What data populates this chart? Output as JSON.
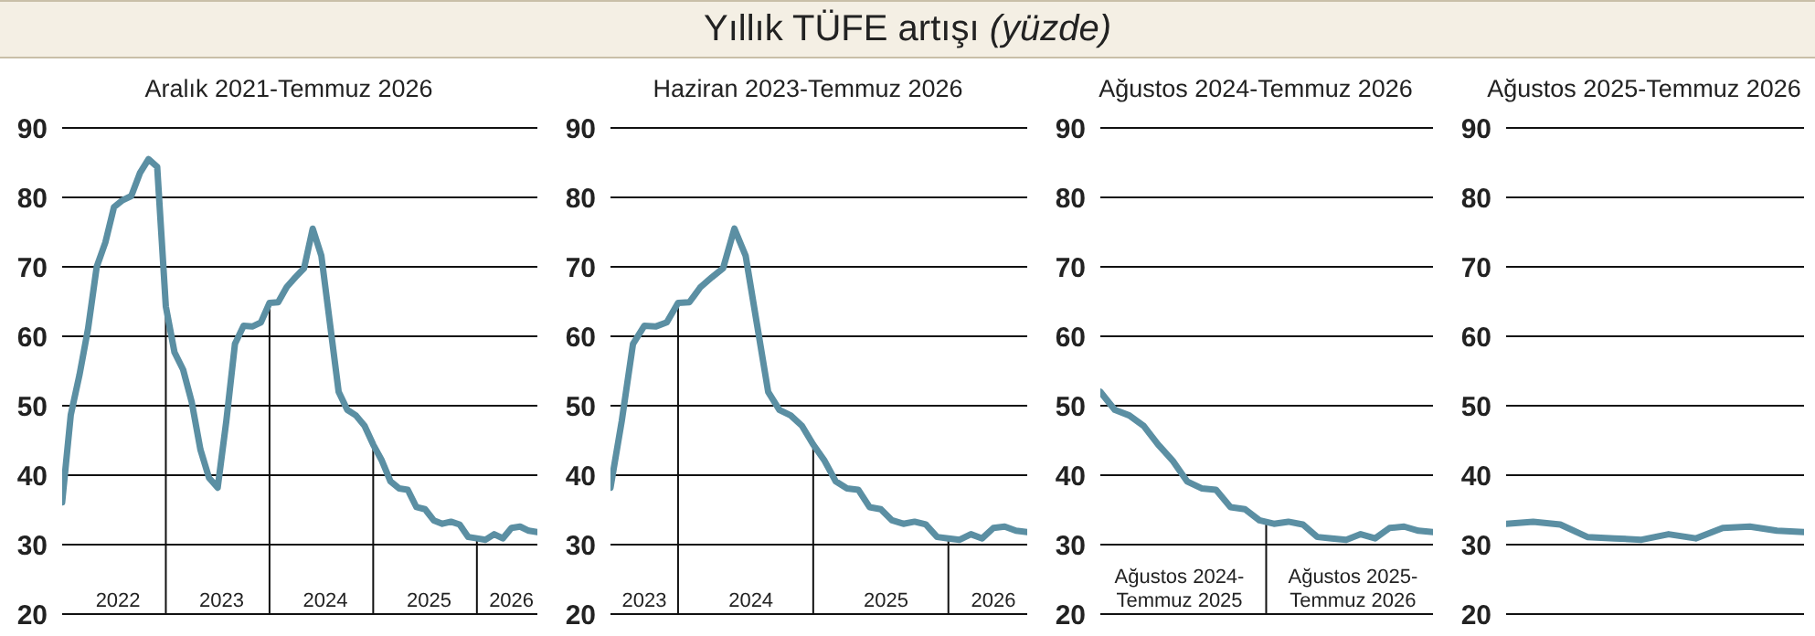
{
  "chart_data": [
    {
      "type": "line",
      "annotations": [
        "Yıllık TÜFE artışı (yüzde)"
      ],
      "title": "Aralık 2021-Temmuz 2026",
      "grid": "y",
      "ylim": [
        20,
        90
      ],
      "yticks": [
        20,
        30,
        40,
        50,
        60,
        70,
        80,
        90
      ],
      "xlim": [
        "2021-12",
        "2026-07"
      ],
      "xticks": [
        {
          "value": "2022-06-15",
          "label": "2022"
        },
        {
          "value": "2023-06-15",
          "label": "2023"
        },
        {
          "value": "2024-06-15",
          "label": "2024"
        },
        {
          "value": "2025-06-15",
          "label": "2025"
        },
        {
          "value": "2026-04",
          "label": "2026"
        }
      ],
      "ref_lines": [
        {
          "axis": "x",
          "value": "2022-12"
        },
        {
          "axis": "x",
          "value": "2023-12"
        },
        {
          "axis": "x",
          "value": "2024-12"
        },
        {
          "axis": "x",
          "value": "2025-12"
        }
      ],
      "x": [
        "2021-12",
        "2022-01",
        "2022-02",
        "2022-03",
        "2022-04",
        "2022-05",
        "2022-06",
        "2022-07",
        "2022-08",
        "2022-09",
        "2022-10",
        "2022-11",
        "2022-12",
        "2023-01",
        "2023-02",
        "2023-03",
        "2023-04",
        "2023-05",
        "2023-06",
        "2023-07",
        "2023-08",
        "2023-09",
        "2023-10",
        "2023-11",
        "2023-12",
        "2024-01",
        "2024-02",
        "2024-03",
        "2024-04",
        "2024-05",
        "2024-06",
        "2024-07",
        "2024-08",
        "2024-09",
        "2024-10",
        "2024-11",
        "2024-12",
        "2025-01",
        "2025-02",
        "2025-03",
        "2025-04",
        "2025-05",
        "2025-06",
        "2025-07",
        "2025-08",
        "2025-09",
        "2025-10",
        "2025-11",
        "2025-12",
        "2026-01",
        "2026-02",
        "2026-03",
        "2026-04",
        "2026-05",
        "2026-06",
        "2026-07"
      ],
      "series": [
        {
          "color": "#5b8fa3",
          "values": [
            36.1,
            48.7,
            54.4,
            61.1,
            70.0,
            73.5,
            78.6,
            79.6,
            80.2,
            83.5,
            85.5,
            84.4,
            64.3,
            57.7,
            55.2,
            50.5,
            43.7,
            39.6,
            38.2,
            47.8,
            58.9,
            61.5,
            61.4,
            62.0,
            64.8,
            64.9,
            67.1,
            68.5,
            69.8,
            75.5,
            71.6,
            61.8,
            52.0,
            49.4,
            48.6,
            47.1,
            44.4,
            42.1,
            39.1,
            38.1,
            37.9,
            35.4,
            35.1,
            33.5,
            33.0,
            33.3,
            32.9,
            31.1,
            30.9,
            30.7,
            31.5,
            30.9,
            32.4,
            32.6,
            32.0,
            31.8
          ]
        }
      ]
    },
    {
      "type": "line",
      "title": "Haziran 2023-Temmuz 2026",
      "grid": "y",
      "ylim": [
        20,
        90
      ],
      "yticks": [
        20,
        30,
        40,
        50,
        60,
        70,
        80,
        90
      ],
      "xlim": [
        "2023-06",
        "2026-07"
      ],
      "xticks": [
        {
          "value": "2023-09",
          "label": "2023"
        },
        {
          "value": "2024-06-15",
          "label": "2024"
        },
        {
          "value": "2025-06-15",
          "label": "2025"
        },
        {
          "value": "2026-04",
          "label": "2026"
        }
      ],
      "ref_lines": [
        {
          "axis": "x",
          "value": "2023-12"
        },
        {
          "axis": "x",
          "value": "2024-12"
        },
        {
          "axis": "x",
          "value": "2025-12"
        }
      ],
      "x": [
        "2023-06",
        "2023-07",
        "2023-08",
        "2023-09",
        "2023-10",
        "2023-11",
        "2023-12",
        "2024-01",
        "2024-02",
        "2024-03",
        "2024-04",
        "2024-05",
        "2024-06",
        "2024-07",
        "2024-08",
        "2024-09",
        "2024-10",
        "2024-11",
        "2024-12",
        "2025-01",
        "2025-02",
        "2025-03",
        "2025-04",
        "2025-05",
        "2025-06",
        "2025-07",
        "2025-08",
        "2025-09",
        "2025-10",
        "2025-11",
        "2025-12",
        "2026-01",
        "2026-02",
        "2026-03",
        "2026-04",
        "2026-05",
        "2026-06",
        "2026-07"
      ],
      "series": [
        {
          "color": "#5b8fa3",
          "values": [
            38.2,
            47.8,
            58.9,
            61.5,
            61.4,
            62.0,
            64.8,
            64.9,
            67.1,
            68.5,
            69.8,
            75.5,
            71.6,
            61.8,
            52.0,
            49.4,
            48.6,
            47.1,
            44.4,
            42.1,
            39.1,
            38.1,
            37.9,
            35.4,
            35.1,
            33.5,
            33.0,
            33.3,
            32.9,
            31.1,
            30.9,
            30.7,
            31.5,
            30.9,
            32.4,
            32.6,
            32.0,
            31.8
          ]
        }
      ]
    },
    {
      "type": "line",
      "title": "Ağustos 2024-Temmuz 2026",
      "grid": "y",
      "ylim": [
        20,
        90
      ],
      "yticks": [
        20,
        30,
        40,
        50,
        60,
        70,
        80,
        90
      ],
      "xlim": [
        "2024-08",
        "2026-07"
      ],
      "xticks": [
        {
          "value": "2025-01-15",
          "label": "Ağustos 2024-\nTemmuz 2025"
        },
        {
          "value": "2026-01-15",
          "label": "Ağustos 2025-\nTemmuz 2026"
        }
      ],
      "ref_lines": [
        {
          "axis": "x",
          "value": "2025-07-15"
        }
      ],
      "x": [
        "2024-08",
        "2024-09",
        "2024-10",
        "2024-11",
        "2024-12",
        "2025-01",
        "2025-02",
        "2025-03",
        "2025-04",
        "2025-05",
        "2025-06",
        "2025-07",
        "2025-08",
        "2025-09",
        "2025-10",
        "2025-11",
        "2025-12",
        "2026-01",
        "2026-02",
        "2026-03",
        "2026-04",
        "2026-05",
        "2026-06",
        "2026-07"
      ],
      "series": [
        {
          "color": "#5b8fa3",
          "values": [
            52.0,
            49.4,
            48.6,
            47.1,
            44.4,
            42.1,
            39.1,
            38.1,
            37.9,
            35.4,
            35.1,
            33.5,
            33.0,
            33.3,
            32.9,
            31.1,
            30.9,
            30.7,
            31.5,
            30.9,
            32.4,
            32.6,
            32.0,
            31.8
          ]
        }
      ]
    },
    {
      "type": "line",
      "title": "Ağustos 2025-Temmuz 2026",
      "grid": "y",
      "ylim": [
        20,
        90
      ],
      "yticks": [
        20,
        30,
        40,
        50,
        60,
        70,
        80,
        90
      ],
      "categories": [
        null,
        null,
        null,
        null,
        null,
        null,
        null,
        null,
        null,
        null,
        null,
        null
      ],
      "series": [
        {
          "color": "#5b8fa3",
          "values": [
            33.0,
            33.3,
            32.9,
            31.1,
            30.9,
            30.7,
            31.5,
            30.9,
            32.4,
            32.6,
            32.0,
            31.8
          ]
        }
      ]
    }
  ]
}
